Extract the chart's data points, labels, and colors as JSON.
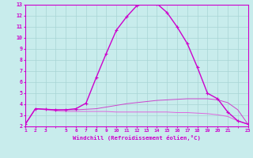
{
  "xlabel": "Windchill (Refroidissement éolien,°C)",
  "background_color": "#c8ecec",
  "grid_color": "#a8d4d4",
  "line_color1": "#cc00cc",
  "line_color2": "#cc44cc",
  "line_color3": "#dd66dd",
  "xmin": 1,
  "xmax": 23,
  "ymin": 2,
  "ymax": 13,
  "line1_x": [
    1,
    2,
    3,
    4,
    5,
    6,
    7,
    8,
    9,
    10,
    11,
    12,
    13,
    14,
    15,
    16,
    17,
    18,
    19,
    20,
    21,
    22,
    23
  ],
  "line1_y": [
    2.2,
    3.6,
    3.55,
    3.5,
    3.5,
    3.6,
    4.1,
    6.4,
    8.6,
    10.7,
    11.9,
    12.9,
    13.15,
    13.1,
    12.3,
    11.0,
    9.5,
    7.35,
    5.0,
    4.5,
    3.3,
    2.5,
    2.2
  ],
  "line2_x": [
    1,
    2,
    3,
    4,
    5,
    6,
    7,
    8,
    9,
    10,
    11,
    12,
    13,
    14,
    15,
    16,
    17,
    18,
    19,
    20,
    21,
    22,
    23
  ],
  "line2_y": [
    2.2,
    3.6,
    3.55,
    3.5,
    3.5,
    3.5,
    3.55,
    3.6,
    3.75,
    3.9,
    4.05,
    4.15,
    4.25,
    4.35,
    4.4,
    4.45,
    4.5,
    4.5,
    4.5,
    4.4,
    4.15,
    3.5,
    2.2
  ],
  "line3_x": [
    1,
    2,
    3,
    4,
    5,
    6,
    7,
    8,
    9,
    10,
    11,
    12,
    13,
    14,
    15,
    16,
    17,
    18,
    19,
    20,
    21,
    22,
    23
  ],
  "line3_y": [
    2.2,
    3.6,
    3.5,
    3.4,
    3.35,
    3.35,
    3.35,
    3.35,
    3.35,
    3.3,
    3.3,
    3.3,
    3.3,
    3.3,
    3.3,
    3.25,
    3.25,
    3.2,
    3.15,
    3.05,
    2.9,
    2.5,
    2.2
  ],
  "xticks": [
    1,
    2,
    3,
    5,
    6,
    7,
    8,
    9,
    10,
    11,
    12,
    13,
    14,
    15,
    16,
    17,
    18,
    19,
    20,
    21,
    23
  ],
  "xtick_labels": [
    "1",
    "2",
    "3",
    "5",
    "6",
    "7",
    "8",
    "9",
    "10",
    "11",
    "12",
    "13",
    "14",
    "15",
    "16",
    "17",
    "18",
    "19",
    "20",
    "21",
    "23"
  ],
  "yticks": [
    2,
    3,
    4,
    5,
    6,
    7,
    8,
    9,
    10,
    11,
    12,
    13
  ],
  "ytick_labels": [
    "2",
    "3",
    "4",
    "5",
    "6",
    "7",
    "8",
    "9",
    "10",
    "11",
    "12",
    "13"
  ]
}
